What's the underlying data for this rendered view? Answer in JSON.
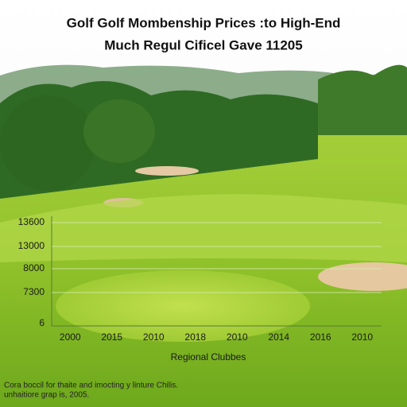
{
  "chart_data": {
    "type": "bar",
    "title": [
      "Golf Golf Mombenship Prices :to High-End",
      "Much Regul Cificel Gave 11205"
    ],
    "categories": [
      "2000",
      "2015",
      "2010",
      "2018",
      "2010",
      "2014",
      "2016",
      "2010"
    ],
    "y_tick_labels": [
      "13600",
      "13000",
      "8000",
      "7300",
      "6"
    ],
    "x_label": "Regional Clubbes",
    "footnote": [
      "Cora boccil for thaite and imocting y linture Chilis.",
      "unhaitiore grap is, 2005."
    ],
    "grid": true
  }
}
